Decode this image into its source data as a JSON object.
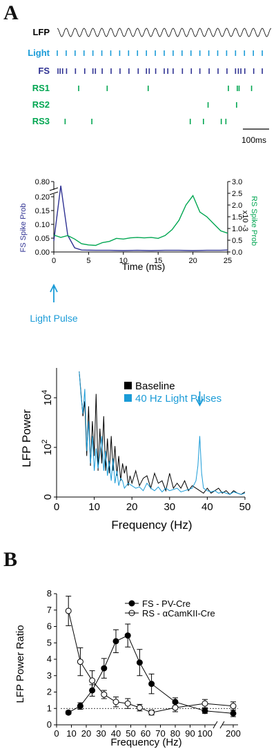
{
  "panel_letters": {
    "a": "A",
    "b": "B"
  },
  "raster": {
    "labels": [
      "LFP",
      "Light",
      "FS",
      "RS1",
      "RS2",
      "RS3"
    ],
    "colors": {
      "LFP": "#000000",
      "Light": "#1a9bd7",
      "FS": "#2e3192",
      "RS1": "#00a651",
      "RS2": "#00a651",
      "RS3": "#00a651"
    },
    "scale_bar_label": "100ms",
    "lfp_cycles": 24
  },
  "chart_data": [
    {
      "type": "raster",
      "x_unit": "ms",
      "x_range": [
        0,
        600
      ],
      "light_pulse_times": [
        0,
        25,
        50,
        75,
        100,
        125,
        150,
        175,
        200,
        225,
        250,
        275,
        300,
        325,
        350,
        375,
        400,
        425,
        450,
        475,
        500,
        525,
        550,
        575
      ],
      "fs_spike_times": [
        2,
        8,
        15,
        26,
        51,
        77,
        100,
        107,
        126,
        151,
        176,
        201,
        227,
        250,
        258,
        276,
        300,
        310,
        325,
        351,
        376,
        400,
        426,
        451,
        476,
        500,
        508,
        515,
        526,
        551,
        575
      ],
      "rs1_spike_times": [
        60,
        140,
        255,
        480,
        505,
        510,
        545
      ],
      "rs2_spike_times": [
        423,
        503
      ],
      "rs3_spike_times": [
        22,
        97,
        373,
        410,
        460,
        473
      ]
    },
    {
      "type": "line",
      "xlabel": "Time (ms)",
      "xlim": [
        0,
        25
      ],
      "x_ticks": [
        0,
        5,
        10,
        15,
        20,
        25
      ],
      "annotation": "Light Pulse",
      "y_left": {
        "label": "FS Spike Prob",
        "ticks": [
          "0.00",
          "0.05",
          "0.10",
          "0.15",
          "0.20",
          "0.80"
        ],
        "axis_break": true
      },
      "y_right": {
        "label": "RS Spike Prob",
        "unit_label": "x10 -3",
        "ticks": [
          "0.0",
          "0.5",
          "1.0",
          "1.5",
          "2.0",
          "2.5",
          "3.0"
        ],
        "ylim": [
          0,
          3
        ]
      },
      "series": [
        {
          "axis": "left",
          "color": "#2e3192",
          "x": [
            0,
            1,
            2,
            3,
            4,
            6,
            8,
            10,
            12,
            14,
            16,
            18,
            20,
            22,
            24,
            25
          ],
          "values": [
            0.04,
            0.8,
            0.06,
            0.015,
            0.007,
            0.006,
            0.006,
            0.005,
            0.006,
            0.005,
            0.006,
            0.006,
            0.005,
            0.006,
            0.006,
            0.007
          ]
        },
        {
          "axis": "right",
          "color": "#00a651",
          "x": [
            0,
            1,
            2,
            3,
            4,
            5,
            6,
            7,
            8,
            9,
            10,
            11,
            12,
            13,
            14,
            15,
            16,
            17,
            18,
            19,
            20,
            21,
            22,
            23,
            24,
            25
          ],
          "values": [
            0.72,
            0.62,
            0.7,
            0.55,
            0.35,
            0.3,
            0.28,
            0.4,
            0.45,
            0.58,
            0.55,
            0.6,
            0.62,
            0.6,
            0.62,
            0.58,
            0.7,
            0.95,
            1.35,
            2.0,
            2.4,
            1.7,
            1.5,
            1.2,
            0.9,
            0.8
          ]
        }
      ]
    },
    {
      "type": "line",
      "xlabel": "Frequency (Hz)",
      "ylabel": "LFP Power",
      "xlim": [
        0,
        50
      ],
      "x_ticks": [
        0,
        10,
        20,
        30,
        40,
        50
      ],
      "y_ticks": [
        {
          "base": "10",
          "exp": "4",
          "value": 4
        },
        {
          "base": "10",
          "exp": "2",
          "value": 2
        },
        {
          "base": "0",
          "exp": "",
          "value": 0
        }
      ],
      "arrow_at_hz": 38,
      "series": [
        {
          "name": "Baseline",
          "color": "#000000",
          "x": [
            6,
            7,
            7.5,
            8,
            8.5,
            9,
            9.5,
            10,
            10.5,
            11,
            11.5,
            12,
            12.5,
            13,
            13.5,
            14,
            14.5,
            15,
            15.5,
            16,
            16.5,
            17,
            17.5,
            18,
            18.5,
            19,
            19.5,
            20,
            21,
            22,
            23,
            24,
            25,
            26,
            27,
            28,
            29,
            30,
            31,
            32,
            33,
            34,
            35,
            36,
            37,
            38,
            39,
            40,
            41,
            42,
            43,
            44,
            45,
            46,
            47,
            48,
            49,
            50
          ],
          "values": [
            5,
            3.2,
            3.8,
            1.6,
            3.6,
            1.2,
            3.0,
            1.6,
            4.1,
            1.0,
            2.7,
            1.3,
            3.2,
            1.0,
            2.3,
            0.9,
            2.4,
            1.0,
            2.0,
            0.8,
            1.6,
            0.6,
            1.3,
            0.9,
            1.2,
            0.4,
            0.8,
            0.5,
            1.0,
            0.4,
            0.7,
            0.8,
            0.3,
            0.9,
            0.5,
            0.6,
            0.2,
            0.9,
            0.3,
            0.5,
            0.3,
            0.6,
            0.2,
            0.4,
            0.3,
            0.2,
            0.1,
            0.3,
            0.1,
            0.2,
            0.3,
            0.1,
            0.2,
            0.05,
            0.2,
            0.1,
            0.05,
            0.15
          ]
        },
        {
          "name": "40 Hz Light Pulses",
          "color": "#1a9bd7",
          "x": [
            6,
            6.5,
            7,
            7.5,
            8,
            8.5,
            9,
            9.5,
            10,
            10.5,
            11,
            11.5,
            12,
            12.5,
            13,
            13.5,
            14,
            14.5,
            15,
            15.5,
            16,
            16.5,
            17,
            17.5,
            18,
            19,
            20,
            21,
            22,
            23,
            24,
            25,
            26,
            27,
            28,
            29,
            30,
            31,
            32,
            33,
            34,
            35,
            36,
            37,
            37.5,
            38,
            38.5,
            39,
            40,
            41,
            42,
            43,
            44,
            45,
            46,
            47,
            48,
            49,
            50
          ],
          "values": [
            5,
            4.0,
            3.3,
            4.3,
            1.8,
            3.0,
            1.3,
            2.4,
            1.0,
            1.9,
            1.1,
            1.7,
            2.4,
            1.0,
            1.8,
            0.8,
            1.4,
            0.6,
            1.5,
            0.5,
            1.0,
            0.4,
            0.7,
            0.6,
            0.3,
            0.5,
            0.4,
            0.3,
            0.35,
            0.2,
            0.5,
            0.3,
            0.2,
            0.35,
            0.15,
            0.3,
            0.2,
            0.25,
            0.3,
            0.15,
            0.2,
            0.25,
            0.3,
            0.6,
            1.2,
            2.4,
            0.9,
            0.3,
            0.2,
            0.15,
            0.2,
            0.1,
            0.15,
            0.1,
            0.05,
            0.15,
            0.1,
            0.05,
            0.1
          ]
        }
      ]
    },
    {
      "type": "line",
      "xlabel": "Frequency (Hz)",
      "ylabel": "LFP Power Ratio",
      "x_tick_labels": [
        "0",
        "10",
        "20",
        "30",
        "40",
        "50",
        "60",
        "70",
        "80",
        "90",
        "100",
        "200"
      ],
      "y_ticks": [
        0,
        1,
        2,
        3,
        4,
        5,
        6,
        7,
        8
      ],
      "ylim": [
        0,
        8
      ],
      "reference_line": 1,
      "series": [
        {
          "name": "FS - PV-Cre",
          "marker": "filled",
          "x": [
            "8",
            "16",
            "24",
            "32",
            "40",
            "48",
            "56",
            "64",
            "80",
            "100",
            "200"
          ],
          "values": [
            0.75,
            1.15,
            2.1,
            3.45,
            5.1,
            5.45,
            3.8,
            2.5,
            1.4,
            0.85,
            0.7
          ],
          "error": [
            0.1,
            0.2,
            0.35,
            0.6,
            0.7,
            0.7,
            0.8,
            0.6,
            0.25,
            0.15,
            0.2
          ]
        },
        {
          "name": "RS - αCamKII-Cre",
          "marker": "open",
          "x": [
            "8",
            "16",
            "24",
            "32",
            "40",
            "48",
            "56",
            "64",
            "80",
            "100",
            "200"
          ],
          "values": [
            6.95,
            3.85,
            2.7,
            1.85,
            1.4,
            1.3,
            1.05,
            0.75,
            1.05,
            1.3,
            1.15
          ],
          "error": [
            0.9,
            0.85,
            0.6,
            0.25,
            0.3,
            0.3,
            0.2,
            0.15,
            0.25,
            0.25,
            0.25
          ]
        }
      ]
    }
  ]
}
